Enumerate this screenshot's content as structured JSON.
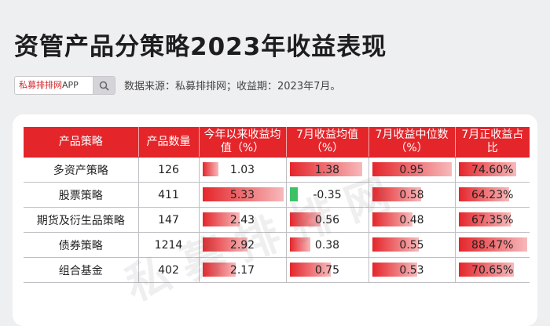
{
  "title": "资管产品分策略2023年收益表现",
  "search": {
    "brand": "私募排排网",
    "suffix": "APP"
  },
  "source_text": "数据来源：私募排排网；收益期：2023年7月。",
  "watermark": "私募排排网",
  "table": {
    "headers": [
      "产品策略",
      "产品数量",
      "今年以来收益均值（%）",
      "7月收益均值（%）",
      "7月收益中位数（%）",
      "7月正收益占比"
    ],
    "rows": [
      {
        "strategy": "多资产策略",
        "count": "126",
        "ytd_mean": "1.03",
        "ytd_frac": 0.19,
        "jul_mean": "1.38",
        "jul_mean_frac": 0.95,
        "jul_median": "0.95",
        "jul_median_frac": 0.99,
        "positive_ratio": "74.60%",
        "positive_frac": 0.84
      },
      {
        "strategy": "股票策略",
        "count": "411",
        "ytd_mean": "5.33",
        "ytd_frac": 1.0,
        "jul_mean": "-0.35",
        "jul_mean_frac": 0.1,
        "jul_median": "0.58",
        "jul_median_frac": 0.61,
        "positive_ratio": "64.23%",
        "positive_frac": 0.73,
        "jul_mean_negative": true
      },
      {
        "strategy": "期货及衍生品策略",
        "count": "147",
        "ytd_mean": "2.43",
        "ytd_frac": 0.46,
        "jul_mean": "0.56",
        "jul_mean_frac": 0.4,
        "jul_median": "0.48",
        "jul_median_frac": 0.5,
        "positive_ratio": "67.35%",
        "positive_frac": 0.76
      },
      {
        "strategy": "债券策略",
        "count": "1214",
        "ytd_mean": "2.92",
        "ytd_frac": 0.55,
        "jul_mean": "0.38",
        "jul_mean_frac": 0.27,
        "jul_median": "0.55",
        "jul_median_frac": 0.58,
        "positive_ratio": "88.47%",
        "positive_frac": 1.0
      },
      {
        "strategy": "组合基金",
        "count": "402",
        "ytd_mean": "2.17",
        "ytd_frac": 0.41,
        "jul_mean": "0.75",
        "jul_mean_frac": 0.54,
        "jul_median": "0.53",
        "jul_median_frac": 0.56,
        "positive_ratio": "70.65%",
        "positive_frac": 0.8
      }
    ]
  },
  "colors": {
    "header_bg": "#e4262b",
    "bar_positive": "#e4262b",
    "bar_negative": "#3cc266"
  }
}
